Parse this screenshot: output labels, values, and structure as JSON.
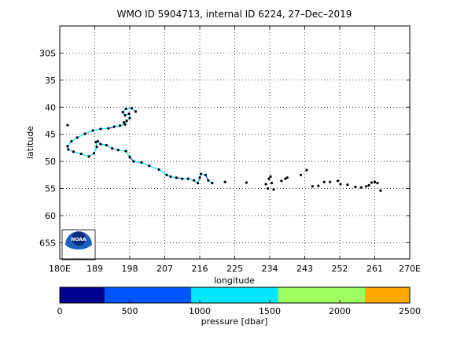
{
  "chart_data": {
    "type": "scatter",
    "title": "WMO ID 5904713, internal ID 6224, 27–Dec–2019",
    "xlabel": "longitude",
    "ylabel": "latitude",
    "xlim": [
      180,
      270
    ],
    "ylim": [
      -68,
      -25
    ],
    "grid": true,
    "x_ticks": [
      {
        "value": 180,
        "label": "180E"
      },
      {
        "value": 189,
        "label": "189"
      },
      {
        "value": 198,
        "label": "198"
      },
      {
        "value": 207,
        "label": "207"
      },
      {
        "value": 216,
        "label": "216"
      },
      {
        "value": 225,
        "label": "225"
      },
      {
        "value": 234,
        "label": "234"
      },
      {
        "value": 243,
        "label": "243"
      },
      {
        "value": 252,
        "label": "252"
      },
      {
        "value": 261,
        "label": "261"
      },
      {
        "value": 270,
        "label": "270E"
      }
    ],
    "y_ticks": [
      {
        "value": -30,
        "label": "30S"
      },
      {
        "value": -35,
        "label": "35"
      },
      {
        "value": -40,
        "label": "40"
      },
      {
        "value": -45,
        "label": "45"
      },
      {
        "value": -50,
        "label": "50"
      },
      {
        "value": -55,
        "label": "55"
      },
      {
        "value": -60,
        "label": "60"
      },
      {
        "value": -65,
        "label": "65S"
      }
    ],
    "trajectory": [
      [
        199.5,
        -40.8
      ],
      [
        198.5,
        -40.2
      ],
      [
        197.0,
        -40.3
      ],
      [
        196.2,
        -40.9
      ],
      [
        196.8,
        -41.5
      ],
      [
        197.8,
        -41.2
      ],
      [
        198.0,
        -42.0
      ],
      [
        197.2,
        -42.5
      ],
      [
        196.8,
        -43.2
      ],
      [
        195.5,
        -43.4
      ],
      [
        194.0,
        -43.6
      ],
      [
        192.5,
        -43.9
      ],
      [
        190.5,
        -44.0
      ],
      [
        188.5,
        -44.3
      ],
      [
        186.5,
        -44.9
      ],
      [
        184.5,
        -45.6
      ],
      [
        183.0,
        -46.3
      ],
      [
        182.0,
        -47.2
      ],
      [
        182.2,
        -47.8
      ],
      [
        183.5,
        -48.2
      ],
      [
        185.5,
        -48.6
      ],
      [
        187.5,
        -49.1
      ],
      [
        188.8,
        -48.5
      ],
      [
        189.5,
        -47.3
      ],
      [
        189.3,
        -46.4
      ],
      [
        189.8,
        -46.3
      ],
      [
        190.5,
        -46.8
      ],
      [
        192.0,
        -47.0
      ],
      [
        193.5,
        -47.6
      ],
      [
        195.0,
        -47.9
      ],
      [
        197.0,
        -48.1
      ],
      [
        198.0,
        -49.2
      ],
      [
        199.0,
        -50.0
      ],
      [
        201.0,
        -50.2
      ],
      [
        203.0,
        -50.8
      ],
      [
        205.5,
        -51.5
      ],
      [
        207.5,
        -52.5
      ],
      [
        208.5,
        -52.8
      ],
      [
        210.0,
        -53.0
      ],
      [
        211.5,
        -53.2
      ],
      [
        213.0,
        -53.2
      ],
      [
        214.5,
        -53.5
      ],
      [
        215.5,
        -54.0
      ],
      [
        216.0,
        -53.0
      ],
      [
        216.3,
        -52.3
      ],
      [
        217.5,
        -52.5
      ],
      [
        218.2,
        -53.5
      ],
      [
        219.2,
        -54.0
      ]
    ],
    "track_colors": [
      "#00e8f0",
      "#1a55ff"
    ],
    "profiles": [
      [
        199.5,
        -40.8
      ],
      [
        198.5,
        -40.2
      ],
      [
        197.0,
        -40.3
      ],
      [
        196.2,
        -40.9
      ],
      [
        196.8,
        -41.5
      ],
      [
        197.8,
        -41.2
      ],
      [
        198.0,
        -42.0
      ],
      [
        197.2,
        -42.5
      ],
      [
        196.8,
        -43.2
      ],
      [
        195.5,
        -43.4
      ],
      [
        194.0,
        -43.6
      ],
      [
        192.5,
        -43.9
      ],
      [
        190.5,
        -44.0
      ],
      [
        188.5,
        -44.3
      ],
      [
        186.5,
        -44.9
      ],
      [
        184.5,
        -45.6
      ],
      [
        183.0,
        -46.3
      ],
      [
        182.0,
        -47.2
      ],
      [
        182.2,
        -47.8
      ],
      [
        183.5,
        -48.2
      ],
      [
        185.5,
        -48.6
      ],
      [
        187.5,
        -49.1
      ],
      [
        188.8,
        -48.5
      ],
      [
        189.5,
        -47.3
      ],
      [
        189.3,
        -46.4
      ],
      [
        189.8,
        -46.3
      ],
      [
        190.5,
        -46.8
      ],
      [
        192.0,
        -47.0
      ],
      [
        193.5,
        -47.6
      ],
      [
        195.0,
        -47.9
      ],
      [
        197.0,
        -48.1
      ],
      [
        198.0,
        -49.2
      ],
      [
        199.0,
        -50.0
      ],
      [
        201.0,
        -50.2
      ],
      [
        203.0,
        -50.8
      ],
      [
        205.5,
        -51.5
      ],
      [
        207.5,
        -52.5
      ],
      [
        208.5,
        -52.8
      ],
      [
        210.0,
        -53.0
      ],
      [
        211.5,
        -53.2
      ],
      [
        213.0,
        -53.2
      ],
      [
        214.5,
        -53.5
      ],
      [
        215.5,
        -54.0
      ],
      [
        216.0,
        -53.0
      ],
      [
        216.3,
        -52.3
      ],
      [
        217.5,
        -52.5
      ],
      [
        218.2,
        -53.5
      ],
      [
        219.2,
        -54.0
      ],
      [
        182.0,
        -43.3
      ],
      [
        196.5,
        -42.8
      ],
      [
        222.5,
        -53.8
      ],
      [
        228.0,
        -53.9
      ],
      [
        233.0,
        -54.2
      ],
      [
        233.8,
        -53.2
      ],
      [
        234.2,
        -52.8
      ],
      [
        234.5,
        -54.0
      ],
      [
        233.5,
        -55.0
      ],
      [
        235.0,
        -55.2
      ],
      [
        237.0,
        -53.6
      ],
      [
        238.0,
        -53.2
      ],
      [
        238.5,
        -53.0
      ],
      [
        242.0,
        -52.5
      ],
      [
        243.5,
        -51.6
      ],
      [
        245.0,
        -54.6
      ],
      [
        246.5,
        -54.5
      ],
      [
        248.0,
        -53.8
      ],
      [
        249.5,
        -53.8
      ],
      [
        251.5,
        -53.6
      ],
      [
        252.2,
        -54.2
      ],
      [
        254.0,
        -54.3
      ],
      [
        256.0,
        -54.7
      ],
      [
        257.5,
        -54.8
      ],
      [
        258.8,
        -54.6
      ],
      [
        259.5,
        -54.4
      ],
      [
        260.2,
        -53.9
      ],
      [
        261.0,
        -53.8
      ],
      [
        261.7,
        -54.0
      ],
      [
        262.5,
        -55.4
      ]
    ],
    "colorbar": {
      "label": "pressure [dbar]",
      "range": [
        0,
        2500
      ],
      "ticks": [
        0,
        500,
        1000,
        1500,
        2000,
        2500
      ],
      "segments": [
        {
          "from": 0,
          "to": 320,
          "color": "#00008f"
        },
        {
          "from": 320,
          "to": 940,
          "color": "#0055ff"
        },
        {
          "from": 940,
          "to": 1560,
          "color": "#00e8f8"
        },
        {
          "from": 1560,
          "to": 2180,
          "color": "#a0ff60"
        },
        {
          "from": 2180,
          "to": 2500,
          "color": "#ffaa00"
        }
      ]
    }
  }
}
